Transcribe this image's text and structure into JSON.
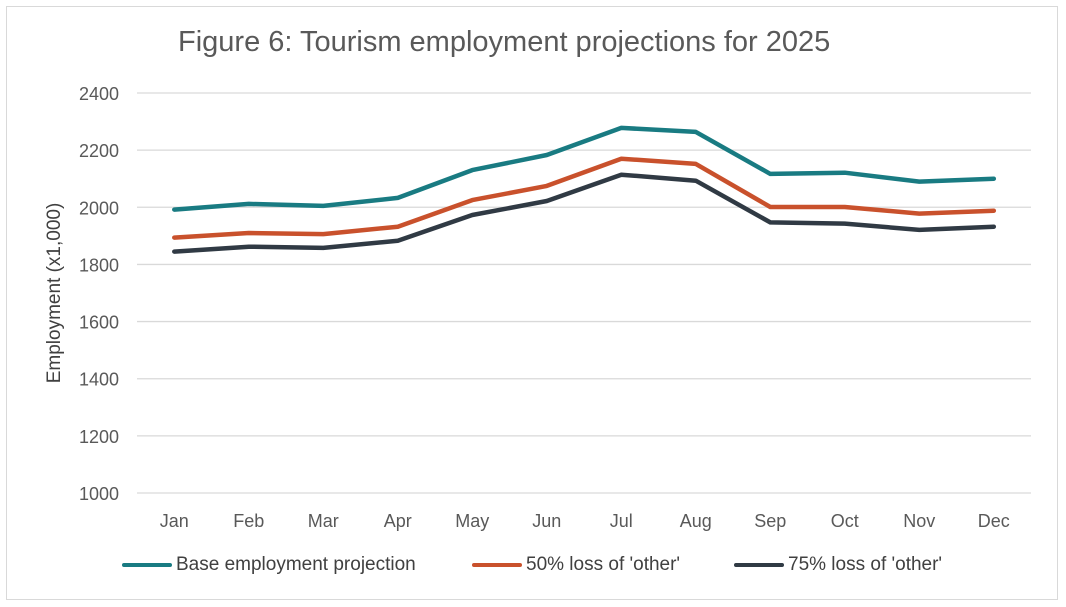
{
  "chart_data": {
    "type": "line",
    "title": "Figure 6: Tourism employment projections for 2025",
    "xlabel": "",
    "ylabel": "Employment (x1,000)",
    "ylim": [
      1000,
      2400
    ],
    "yticks": [
      "1000",
      "1200",
      "1400",
      "1600",
      "1800",
      "2000",
      "2200",
      "2400"
    ],
    "categories": [
      "Jan",
      "Feb",
      "Mar",
      "Apr",
      "May",
      "Jun",
      "Jul",
      "Aug",
      "Sep",
      "Oct",
      "Nov",
      "Dec"
    ],
    "grid": true,
    "legend_position": "bottom",
    "series": [
      {
        "name": "Base employment projection",
        "color": "#197b82",
        "values": [
          1992,
          2012,
          2005,
          2033,
          2130,
          2183,
          2278,
          2264,
          2117,
          2121,
          2090,
          2100
        ]
      },
      {
        "name": "50% loss of 'other'",
        "color": "#c9512c",
        "values": [
          1894,
          1910,
          1906,
          1932,
          2025,
          2075,
          2170,
          2152,
          2001,
          2001,
          1978,
          1988
        ]
      },
      {
        "name": "75% loss of 'other'",
        "color": "#303a44",
        "values": [
          1845,
          1862,
          1858,
          1883,
          1973,
          2022,
          2114,
          2093,
          1947,
          1943,
          1921,
          1932
        ]
      }
    ]
  }
}
